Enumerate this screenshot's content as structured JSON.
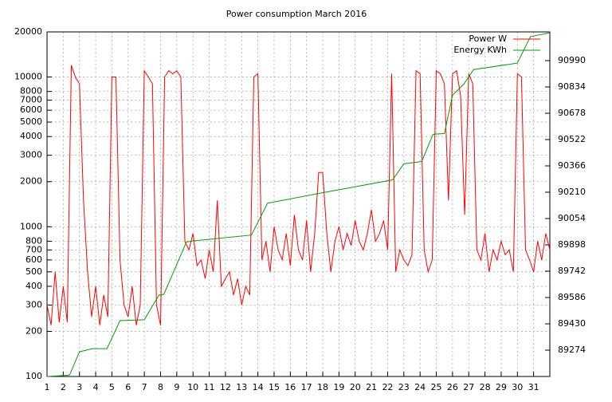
{
  "chart_data": {
    "type": "line",
    "title": "Power consumption March 2016",
    "xlim": [
      1,
      32
    ],
    "xticks": [
      1,
      2,
      3,
      4,
      5,
      6,
      7,
      8,
      9,
      10,
      11,
      12,
      13,
      14,
      15,
      16,
      17,
      18,
      19,
      20,
      21,
      22,
      23,
      24,
      25,
      26,
      27,
      28,
      29,
      30,
      31
    ],
    "ylim": [
      100,
      20000
    ],
    "yticks": [
      100,
      200,
      300,
      400,
      500,
      600,
      700,
      800,
      1000,
      2000,
      3000,
      4000,
      5000,
      6000,
      7000,
      8000,
      10000,
      20000
    ],
    "log_y": true,
    "y2lim": [
      89118,
      91160
    ],
    "y2ticks": [
      89274,
      89430,
      89586,
      89742,
      89898,
      90054,
      90210,
      90366,
      90522,
      90678,
      90834,
      90990
    ],
    "grid": true,
    "legend": "top-right",
    "series": [
      {
        "name": "Power W",
        "color": "#ff0000",
        "x": [
          1,
          1.25,
          1.5,
          1.75,
          2,
          2.25,
          2.5,
          2.75,
          3,
          3.25,
          3.5,
          3.75,
          4,
          4.25,
          4.5,
          4.75,
          5,
          5.25,
          5.5,
          5.75,
          6,
          6.25,
          6.5,
          6.75,
          7,
          7.25,
          7.5,
          7.75,
          8,
          8.25,
          8.5,
          8.75,
          9,
          9.25,
          9.5,
          9.75,
          10,
          10.25,
          10.5,
          10.75,
          11,
          11.25,
          11.5,
          11.75,
          12,
          12.25,
          12.5,
          12.75,
          13,
          13.25,
          13.5,
          13.75,
          14,
          14.25,
          14.5,
          14.75,
          15,
          15.25,
          15.5,
          15.75,
          16,
          16.25,
          16.5,
          16.75,
          17,
          17.25,
          17.5,
          17.75,
          18,
          18.25,
          18.5,
          18.75,
          19,
          19.25,
          19.5,
          19.75,
          20,
          20.25,
          20.5,
          20.75,
          21,
          21.25,
          21.5,
          21.75,
          22,
          22.25,
          22.5,
          22.75,
          23,
          23.25,
          23.5,
          23.75,
          24,
          24.25,
          24.5,
          24.75,
          25,
          25.25,
          25.5,
          25.75,
          26,
          26.25,
          26.5,
          26.75,
          27,
          27.25,
          27.5,
          27.75,
          28,
          28.25,
          28.5,
          28.75,
          29,
          29.25,
          29.5,
          29.75,
          30,
          30.25,
          30.5,
          30.75,
          31,
          31.25,
          31.5,
          31.75,
          32
        ],
        "values": [
          300,
          220,
          500,
          230,
          400,
          230,
          12000,
          10000,
          9000,
          1500,
          500,
          250,
          400,
          220,
          350,
          250,
          10000,
          10000,
          600,
          300,
          250,
          400,
          220,
          300,
          11000,
          10000,
          9000,
          300,
          220,
          10000,
          11000,
          10500,
          11000,
          10000,
          800,
          700,
          900,
          550,
          600,
          450,
          700,
          500,
          1500,
          400,
          450,
          500,
          350,
          450,
          300,
          400,
          350,
          10000,
          10500,
          600,
          800,
          500,
          1000,
          700,
          600,
          900,
          550,
          1200,
          700,
          600,
          1100,
          500,
          900,
          2300,
          2300,
          900,
          500,
          800,
          1000,
          700,
          900,
          750,
          1100,
          800,
          700,
          900,
          1300,
          800,
          900,
          1100,
          700,
          10500,
          500,
          700,
          600,
          550,
          650,
          11000,
          10500,
          700,
          500,
          600,
          11000,
          10500,
          9000,
          1500,
          10500,
          11000,
          7500,
          1200,
          10500,
          9000,
          700,
          600,
          900,
          500,
          700,
          600,
          800,
          650,
          700,
          500,
          10500,
          10000,
          700,
          600,
          500,
          800,
          600,
          900,
          700
        ]
      },
      {
        "name": "Energy KWh",
        "color": "#00a000",
        "axis": "y2",
        "x": [
          1,
          2.3,
          2.4,
          3,
          3.8,
          4.7,
          5.5,
          7,
          7.9,
          8.2,
          9.6,
          10,
          13.6,
          14.6,
          18,
          22.3,
          23,
          24.1,
          24.8,
          25.5,
          26,
          26.7,
          27.3,
          30,
          30.8,
          32
        ],
        "values": [
          89118,
          89125,
          89128,
          89264,
          89283,
          89283,
          89449,
          89454,
          89600,
          89605,
          89916,
          89921,
          89956,
          90145,
          90207,
          90283,
          90378,
          90392,
          90553,
          90558,
          90785,
          90851,
          90937,
          90975,
          91132,
          91155
        ]
      }
    ]
  }
}
